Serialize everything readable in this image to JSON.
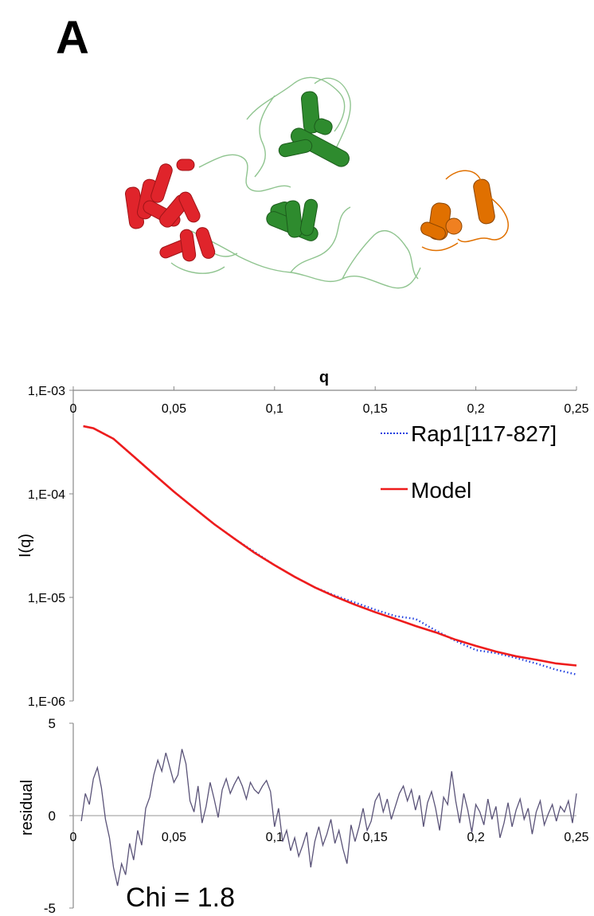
{
  "panel_label": "A",
  "colors": {
    "domain_left": "#e0242b",
    "domain_middle": "#2e8b2e",
    "domain_right": "#e07000",
    "linker": "#8fc48f",
    "data_series": "#2040e0",
    "model_series": "#ee1c1c",
    "residual_line": "#5a5378",
    "axis": "#888888"
  },
  "chart_data": [
    {
      "type": "line",
      "title": "",
      "xlabel": "q",
      "ylabel": "I(q)",
      "xlim": [
        0,
        0.25
      ],
      "ylim": [
        1e-06,
        0.001
      ],
      "y_scale": "log",
      "x_ticks": [
        "0",
        "0,05",
        "0,1",
        "0,15",
        "0,2",
        "0,25"
      ],
      "y_ticks": [
        "1,E-03",
        "1,E-04",
        "1,E-05",
        "1,E-06"
      ],
      "x_axis_position": "top",
      "legend": "top-right",
      "series": [
        {
          "name": "Rap1[117-827]",
          "style": "dotted",
          "x": [
            0.005,
            0.01,
            0.02,
            0.03,
            0.04,
            0.05,
            0.06,
            0.07,
            0.08,
            0.09,
            0.1,
            0.11,
            0.12,
            0.13,
            0.14,
            0.15,
            0.16,
            0.17,
            0.18,
            0.19,
            0.2,
            0.21,
            0.22,
            0.23,
            0.24,
            0.25
          ],
          "values": [
            0.00045,
            0.00043,
            0.00034,
            0.00023,
            0.000155,
            0.000105,
            7.3e-05,
            5.1e-05,
            3.7e-05,
            2.75e-05,
            2.05e-05,
            1.58e-05,
            1.25e-05,
            1.04e-05,
            8.9e-06,
            7.6e-06,
            6.6e-06,
            6.2e-06,
            4.8e-06,
            3.8e-06,
            3.1e-06,
            2.9e-06,
            2.6e-06,
            2.3e-06,
            2e-06,
            1.8e-06
          ]
        },
        {
          "name": "Model",
          "style": "solid",
          "x": [
            0.005,
            0.01,
            0.02,
            0.03,
            0.04,
            0.05,
            0.06,
            0.07,
            0.08,
            0.09,
            0.1,
            0.11,
            0.12,
            0.13,
            0.14,
            0.15,
            0.16,
            0.17,
            0.18,
            0.19,
            0.2,
            0.21,
            0.22,
            0.23,
            0.24,
            0.25
          ],
          "values": [
            0.00045,
            0.00043,
            0.00034,
            0.00023,
            0.000155,
            0.000105,
            7.3e-05,
            5.1e-05,
            3.7e-05,
            2.7e-05,
            2.05e-05,
            1.58e-05,
            1.25e-05,
            1.02e-05,
            8.5e-06,
            7.2e-06,
            6.2e-06,
            5.3e-06,
            4.6e-06,
            3.9e-06,
            3.4e-06,
            3e-06,
            2.7e-06,
            2.5e-06,
            2.3e-06,
            2.2e-06
          ]
        }
      ]
    },
    {
      "type": "line",
      "title": "",
      "xlabel": "",
      "ylabel": "residual",
      "xlim": [
        0,
        0.25
      ],
      "ylim": [
        -5,
        5
      ],
      "x_ticks": [
        "0",
        "0,05",
        "0,1",
        "0,15",
        "0,2",
        "0,25"
      ],
      "y_ticks": [
        "5",
        "0",
        "-5"
      ],
      "annotation": "Chi = 1.8",
      "series": [
        {
          "x": [
            0.004,
            0.006,
            0.008,
            0.01,
            0.012,
            0.014,
            0.016,
            0.018,
            0.02,
            0.022,
            0.024,
            0.026,
            0.028,
            0.03,
            0.032,
            0.034,
            0.036,
            0.038,
            0.04,
            0.042,
            0.044,
            0.046,
            0.048,
            0.05,
            0.052,
            0.054,
            0.056,
            0.058,
            0.06,
            0.062,
            0.064,
            0.066,
            0.068,
            0.07,
            0.072,
            0.074,
            0.076,
            0.078,
            0.08,
            0.082,
            0.084,
            0.086,
            0.088,
            0.09,
            0.092,
            0.094,
            0.096,
            0.098,
            0.1,
            0.102,
            0.104,
            0.106,
            0.108,
            0.11,
            0.112,
            0.114,
            0.116,
            0.118,
            0.12,
            0.122,
            0.124,
            0.126,
            0.128,
            0.13,
            0.132,
            0.134,
            0.136,
            0.138,
            0.14,
            0.142,
            0.144,
            0.146,
            0.148,
            0.15,
            0.152,
            0.154,
            0.156,
            0.158,
            0.16,
            0.162,
            0.164,
            0.166,
            0.168,
            0.17,
            0.172,
            0.174,
            0.176,
            0.178,
            0.18,
            0.182,
            0.184,
            0.186,
            0.188,
            0.19,
            0.192,
            0.194,
            0.196,
            0.198,
            0.2,
            0.202,
            0.204,
            0.206,
            0.208,
            0.21,
            0.212,
            0.214,
            0.216,
            0.218,
            0.22,
            0.222,
            0.224,
            0.226,
            0.228,
            0.23,
            0.232,
            0.234,
            0.236,
            0.238,
            0.24,
            0.242,
            0.244,
            0.246,
            0.248,
            0.25
          ],
          "values": [
            -0.3,
            1.2,
            0.6,
            2.0,
            2.6,
            1.5,
            -0.2,
            -1.2,
            -2.8,
            -3.8,
            -2.6,
            -3.2,
            -1.5,
            -2.4,
            -0.8,
            -1.6,
            0.4,
            1.0,
            2.2,
            3.0,
            2.4,
            3.4,
            2.6,
            1.8,
            2.2,
            3.6,
            2.8,
            0.8,
            0.2,
            1.6,
            -0.4,
            0.5,
            1.8,
            0.9,
            -0.1,
            1.4,
            2.0,
            1.2,
            1.7,
            2.1,
            1.6,
            0.9,
            1.8,
            1.4,
            1.2,
            1.6,
            1.9,
            1.3,
            -0.6,
            0.4,
            -1.4,
            -0.8,
            -1.9,
            -1.2,
            -2.2,
            -1.6,
            -0.9,
            -2.8,
            -1.4,
            -0.6,
            -1.6,
            -1.0,
            -0.2,
            -1.5,
            -0.8,
            -1.8,
            -2.6,
            -0.5,
            -1.4,
            -0.6,
            0.4,
            -0.8,
            -0.3,
            0.8,
            1.2,
            0.2,
            0.9,
            -0.2,
            0.5,
            1.2,
            1.6,
            0.8,
            1.4,
            0.3,
            1.1,
            -0.6,
            0.7,
            1.3,
            0.4,
            -0.8,
            1.0,
            0.6,
            2.4,
            0.8,
            -0.4,
            1.2,
            0.3,
            -0.9,
            0.6,
            0.2,
            -0.5,
            0.9,
            -0.2,
            0.5,
            -1.2,
            -0.4,
            0.7,
            -0.6,
            0.3,
            0.9,
            -0.2,
            0.4,
            -1.0,
            0.2,
            0.8,
            -0.5,
            0.1,
            0.6,
            -0.3,
            0.5,
            0.2,
            0.8,
            -0.4,
            1.2
          ]
        }
      ]
    }
  ]
}
